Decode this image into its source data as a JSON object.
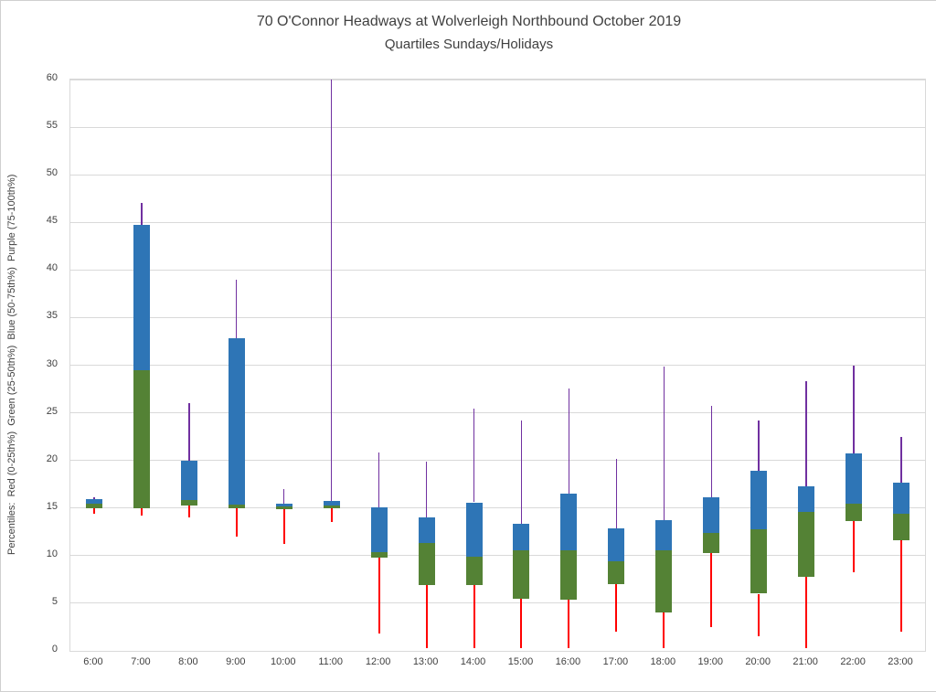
{
  "chart_data": {
    "type": "boxplot",
    "title": "70 O'Connor Headways at Wolverleigh Northbound October 2019",
    "subtitle": "Quartiles Sundays/Holidays",
    "ylabel": "Percentiles:  Red (0-25th%)  Green (25-50th%)  Blue (50-75th%)  Purple (75-100th%)",
    "ylim": [
      0,
      60
    ],
    "ytick_step": 5,
    "grid": true,
    "legend_position": "none",
    "colors": {
      "red_0_25": "#FF0000",
      "green_25_50": "#548235",
      "blue_50_75": "#2E75B6",
      "purple_75_100": "#7030A0",
      "gridline": "#D9D9D9",
      "text": "#404040"
    },
    "categories": [
      "6:00",
      "7:00",
      "8:00",
      "9:00",
      "10:00",
      "11:00",
      "12:00",
      "13:00",
      "14:00",
      "15:00",
      "16:00",
      "17:00",
      "18:00",
      "19:00",
      "20:00",
      "21:00",
      "22:00",
      "23:00"
    ],
    "points": [
      {
        "hour": "6:00",
        "min": 14.4,
        "q1": 15.0,
        "median": 15.5,
        "q3": 15.9,
        "max": 16.1
      },
      {
        "hour": "7:00",
        "min": 14.2,
        "q1": 15.0,
        "median": 29.5,
        "q3": 44.7,
        "max": 47.0
      },
      {
        "hour": "8:00",
        "min": 14.0,
        "q1": 15.3,
        "median": 15.8,
        "q3": 20.0,
        "max": 26.0
      },
      {
        "hour": "9:00",
        "min": 12.0,
        "q1": 15.0,
        "median": 15.4,
        "q3": 32.8,
        "max": 39.0
      },
      {
        "hour": "10:00",
        "min": 11.2,
        "q1": 14.9,
        "median": 15.2,
        "q3": 15.5,
        "max": 17.0
      },
      {
        "hour": "11:00",
        "min": 13.5,
        "q1": 15.0,
        "median": 15.3,
        "q3": 15.7,
        "max": 60.0
      },
      {
        "hour": "12:00",
        "min": 1.8,
        "q1": 9.8,
        "median": 10.4,
        "q3": 15.1,
        "max": 20.8
      },
      {
        "hour": "13:00",
        "min": 0.3,
        "q1": 6.9,
        "median": 11.3,
        "q3": 14.0,
        "max": 19.9
      },
      {
        "hour": "14:00",
        "min": 0.3,
        "q1": 6.9,
        "median": 9.9,
        "q3": 15.6,
        "max": 25.4
      },
      {
        "hour": "15:00",
        "min": 0.3,
        "q1": 5.5,
        "median": 10.6,
        "q3": 13.3,
        "max": 24.2
      },
      {
        "hour": "16:00",
        "min": 0.3,
        "q1": 5.4,
        "median": 10.6,
        "q3": 16.5,
        "max": 27.6
      },
      {
        "hour": "17:00",
        "min": 2.0,
        "q1": 7.0,
        "median": 9.4,
        "q3": 12.9,
        "max": 20.2
      },
      {
        "hour": "18:00",
        "min": 0.3,
        "q1": 4.0,
        "median": 10.6,
        "q3": 13.7,
        "max": 29.9
      },
      {
        "hour": "19:00",
        "min": 2.5,
        "q1": 10.3,
        "median": 12.4,
        "q3": 16.1,
        "max": 25.7
      },
      {
        "hour": "20:00",
        "min": 1.5,
        "q1": 6.0,
        "median": 12.8,
        "q3": 18.9,
        "max": 24.2
      },
      {
        "hour": "21:00",
        "min": 0.3,
        "q1": 7.8,
        "median": 14.6,
        "q3": 17.3,
        "max": 28.3
      },
      {
        "hour": "22:00",
        "min": 8.3,
        "q1": 13.6,
        "median": 15.5,
        "q3": 20.7,
        "max": 30.0
      },
      {
        "hour": "23:00",
        "min": 2.0,
        "q1": 11.6,
        "median": 14.4,
        "q3": 17.7,
        "max": 22.5
      }
    ]
  }
}
